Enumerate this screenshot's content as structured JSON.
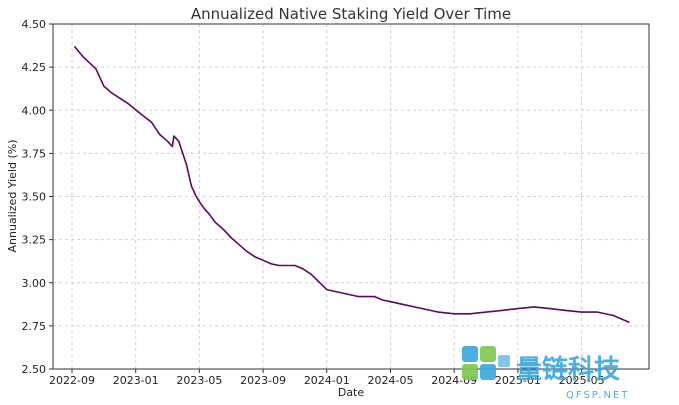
{
  "chart_data": {
    "type": "line",
    "title": "Annualized Native Staking Yield Over Time",
    "xlabel": "Date",
    "ylabel": "Annualized Yield (%)",
    "ylim": [
      2.5,
      4.5
    ],
    "yticks": [
      "2.50",
      "2.75",
      "3.00",
      "3.25",
      "3.50",
      "3.75",
      "4.00",
      "4.25",
      "4.50"
    ],
    "xticks": [
      "2022-09",
      "2023-01",
      "2023-05",
      "2023-09",
      "2024-01",
      "2024-05",
      "2024-09",
      "2025-01",
      "2025-05"
    ],
    "grid": true,
    "series": [
      {
        "name": "Annualized Yield",
        "color": "#5b0a5e",
        "x_month_index": [
          0.15,
          0.7,
          1.5,
          2.0,
          2.5,
          3.0,
          3.5,
          4.3,
          5.0,
          5.5,
          6.0,
          6.3,
          6.4,
          6.7,
          7.2,
          7.5,
          7.8,
          8.0,
          8.3,
          8.6,
          9.0,
          9.5,
          10.0,
          10.5,
          11.0,
          11.5,
          12.0,
          12.5,
          13.0,
          14.0,
          14.5,
          15.0,
          16.0,
          17.0,
          18.0,
          19.0,
          19.5,
          20.0,
          21.0,
          22.0,
          23.0,
          24.0,
          25.0,
          26.0,
          27.0,
          28.0,
          29.0,
          30.0,
          31.0,
          32.0,
          33.0,
          34.0,
          34.5,
          35.0
        ],
        "values": [
          4.37,
          4.31,
          4.24,
          4.14,
          4.1,
          4.07,
          4.04,
          3.98,
          3.93,
          3.86,
          3.82,
          3.79,
          3.85,
          3.82,
          3.68,
          3.56,
          3.5,
          3.47,
          3.43,
          3.4,
          3.35,
          3.31,
          3.26,
          3.22,
          3.18,
          3.15,
          3.13,
          3.11,
          3.1,
          3.1,
          3.08,
          3.05,
          2.96,
          2.94,
          2.92,
          2.92,
          2.9,
          2.89,
          2.87,
          2.85,
          2.83,
          2.82,
          2.82,
          2.83,
          2.84,
          2.85,
          2.86,
          2.85,
          2.84,
          2.83,
          2.83,
          2.81,
          2.79,
          2.77
        ]
      }
    ]
  },
  "watermark": {
    "text": "量链科技",
    "sub": "QFSP.NET",
    "color": "#3aa6dd",
    "accent": "#7ec84d"
  }
}
